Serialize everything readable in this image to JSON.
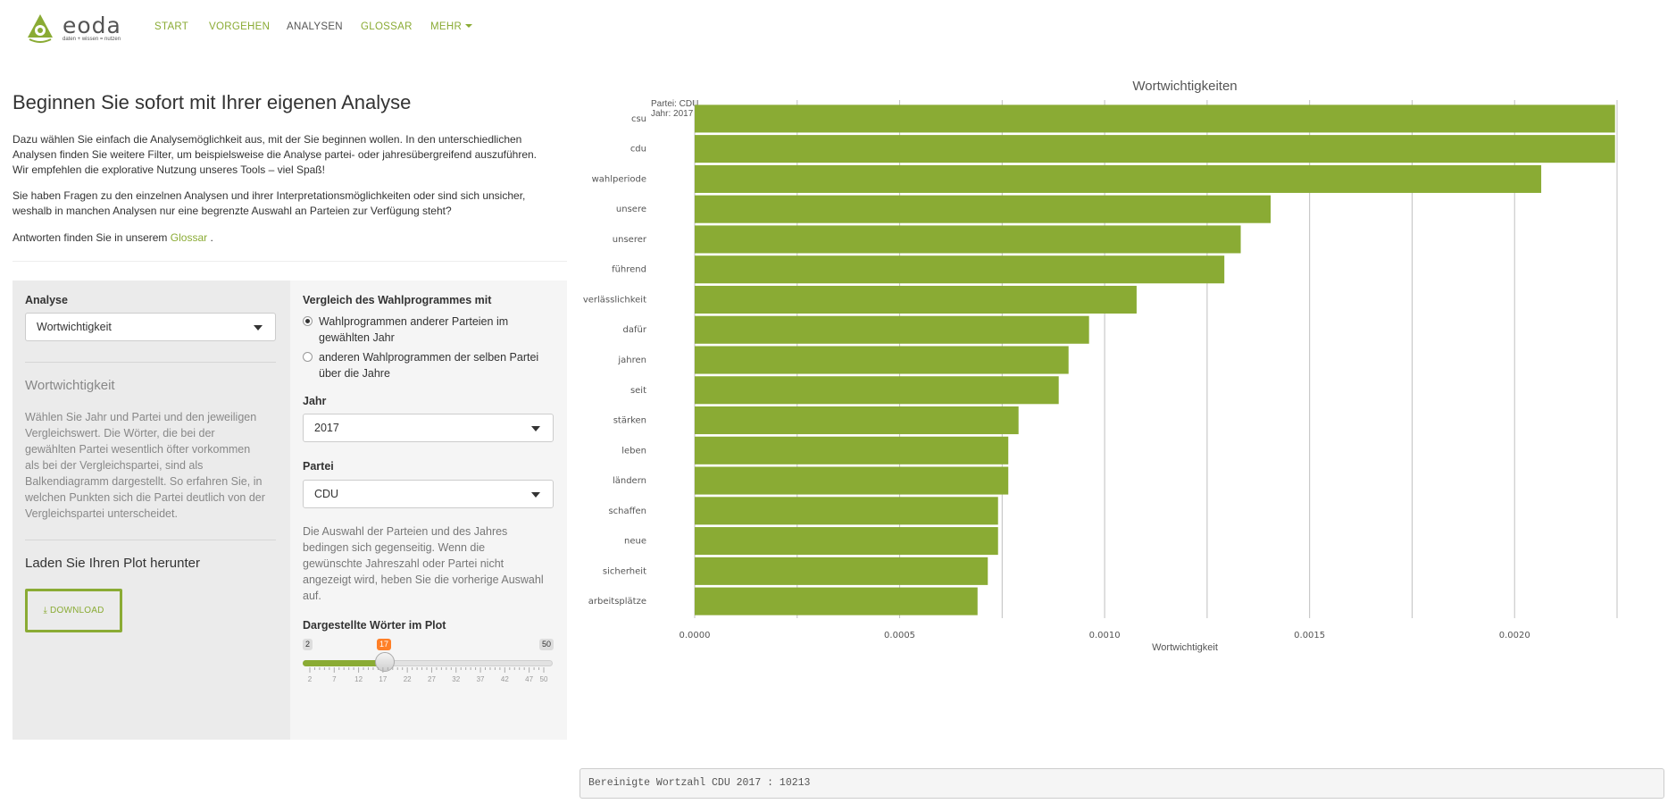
{
  "brand": {
    "name": "eoda",
    "tagline": "daten + wissen = nutzen",
    "logo_color": "#8aab34"
  },
  "nav": {
    "items": [
      {
        "label": "START"
      },
      {
        "label": "VORGEHEN"
      },
      {
        "label": "ANALYSEN"
      },
      {
        "label": "GLOSSAR"
      },
      {
        "label": "MEHR"
      }
    ],
    "active": "ANALYSEN"
  },
  "intro": {
    "title": "Beginnen Sie sofort mit Ihrer eigenen Analyse",
    "p1": [
      "Dazu wählen Sie einfach die Analysemöglichkeit aus, mit der Sie beginnen wollen. In den unterschiedlichen",
      "Analysen finden Sie weitere Filter, um beispielsweise die Analyse partei- oder jahresübergreifend auszuführen.",
      "Wir empfehlen die explorative Nutzung unseres Tools – viel Spaß!"
    ],
    "p2": [
      "Sie haben Fragen zu den einzelnen Analysen und ihrer Interpretationsmöglichkeiten oder sind sich unsicher,",
      "weshalb in manchen Analysen nur eine begrenzte Auswahl an Parteien zur Verfügung steht?"
    ],
    "p3_prefix": "Antworten finden Sie in unserem ",
    "p3_link": "Glossar",
    "p3_suffix": " ."
  },
  "left_panel": {
    "analysis_label": "Analyse",
    "analysis_value": "Wortwichtigkeit",
    "section_title": "Wortwichtigkeit",
    "section_desc": [
      "Wählen Sie Jahr und Partei und den jeweiligen",
      "Vergleichswert. Die Wörter, die bei der",
      "gewählten Partei wesentlich öfter vorkommen",
      "als bei der Vergleichspartei, sind als",
      "Balkendiagramm dargestellt. So erfahren Sie, in",
      "welchen Punkten sich die Partei deutlich von der",
      "Vergleichspartei unterscheidet."
    ],
    "download_title": "Laden Sie Ihren Plot herunter",
    "download_label": "DOWNLOAD"
  },
  "right_panel": {
    "compare_label": "Vergleich des Wahlprogrammes mit",
    "options": [
      {
        "lines": [
          "Wahlprogrammen anderer Parteien im",
          "gewählten Jahr"
        ],
        "checked": true
      },
      {
        "lines": [
          "anderen Wahlprogrammen der selben Partei",
          "über die Jahre"
        ],
        "checked": false
      }
    ],
    "year_label": "Jahr",
    "year_value": "2017",
    "party_label": "Partei",
    "party_value": "CDU",
    "note": [
      "Die Auswahl der Parteien und des Jahres",
      "bedingen sich gegenseitig. Wenn die",
      "gewünschte Jahreszahl oder Partei nicht",
      "angezeigt wird, heben Sie die vorherige Auswahl",
      "auf."
    ],
    "slider_label": "Dargestellte Wörter im Plot",
    "slider_min": 2,
    "slider_max": 50,
    "slider_value": 17,
    "slider_ticks": [
      2,
      7,
      12,
      17,
      22,
      27,
      32,
      37,
      42,
      47,
      50
    ]
  },
  "chart_data": {
    "type": "bar",
    "orientation": "horizontal",
    "title": "Wortwichtigkeiten",
    "subtitle_lines": [
      "Partei: CDU",
      "Jahr: 2017"
    ],
    "xlabel": "Wortwichtigkeit",
    "ylabel": "",
    "xlim": [
      0,
      0.00225
    ],
    "xticks": [
      "0.0000",
      "0.0005",
      "0.0010",
      "0.0015",
      "0.0020"
    ],
    "xtick_values": [
      0,
      0.0005,
      0.001,
      0.0015,
      0.002
    ],
    "grid": true,
    "bar_color": "#8aab34",
    "categories": [
      "csu",
      "cdu",
      "wahlperiode",
      "unsere",
      "unserer",
      "führend",
      "verlässlichkeit",
      "dafür",
      "jahren",
      "seit",
      "stärken",
      "leben",
      "ländern",
      "schaffen",
      "neue",
      "sicherheit",
      "arbeitsplätze"
    ],
    "values": [
      0.002245,
      0.002245,
      0.002065,
      0.001405,
      0.001332,
      0.001292,
      0.001078,
      0.000962,
      0.000912,
      0.000888,
      0.00079,
      0.000765,
      0.000765,
      0.00074,
      0.00074,
      0.000715,
      0.00069
    ]
  },
  "footer": {
    "verbatim": "Bereinigte Wortzahl CDU 2017 : 10213"
  }
}
